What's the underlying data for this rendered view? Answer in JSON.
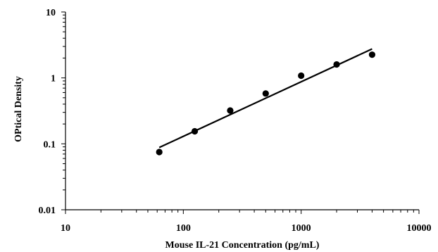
{
  "chart_data": {
    "type": "scatter",
    "title": "",
    "xlabel": "Mouse IL-21  Concentration (pg/mL)",
    "ylabel": "OPtical Density",
    "x_scale": "log",
    "y_scale": "log",
    "xlim": [
      10,
      10000
    ],
    "ylim": [
      0.01,
      10
    ],
    "x_ticks": [
      10,
      100,
      1000,
      10000
    ],
    "x_tick_labels": [
      "10",
      "100",
      "1000",
      "10000"
    ],
    "y_ticks": [
      0.01,
      0.1,
      1,
      10
    ],
    "y_tick_labels": [
      "0.01",
      "0.1",
      "1",
      "10"
    ],
    "grid": false,
    "legend": "none",
    "series": [
      {
        "x": [
          62.5,
          125,
          250,
          500,
          1000,
          2000,
          4000
        ],
        "y": [
          0.075,
          0.155,
          0.32,
          0.58,
          1.08,
          1.6,
          2.25
        ],
        "marker_color": "#000000"
      }
    ],
    "trendline": {
      "type": "power",
      "x": [
        62.5,
        4000
      ],
      "y": [
        0.088,
        2.75
      ],
      "color": "#000000"
    }
  }
}
